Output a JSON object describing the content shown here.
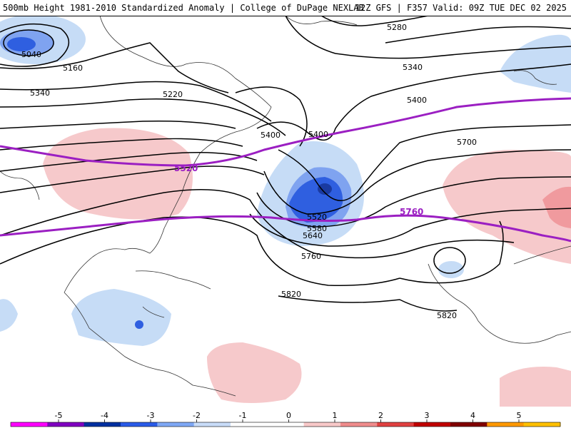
{
  "header": {
    "title_left": "500mb Height 1981-2010 Standardized Anomaly | College of DuPage NEXLAB",
    "title_right": "12Z GFS | F357 Valid: 09Z TUE DEC 02 2025"
  },
  "contour_labels": {
    "c5040": "5040",
    "c5160": "5160",
    "c5220": "5220",
    "c5280": "5280",
    "c5340a": "5340",
    "c5340b": "5340",
    "c5400a": "5400",
    "c5400b": "5400",
    "c5400c": "5400",
    "c5520": "5520",
    "c5580": "5580",
    "c5640": "5640",
    "c5700": "5700",
    "c5760": "5760",
    "c5820a": "5820",
    "c5820b": "5820"
  },
  "highlight_labels": {
    "h5520": "5520",
    "h5760": "5760"
  },
  "legend": {
    "ticks": [
      "-5",
      "-4",
      "-3",
      "-2",
      "-1",
      "0",
      "1",
      "2",
      "3",
      "4",
      "5"
    ],
    "colors": [
      "#ff00ff",
      "#8000c0",
      "#0030a0",
      "#2a5be8",
      "#7fa8f5",
      "#c8dcf8",
      "#ffffff",
      "#ffffff",
      "#f8c8c8",
      "#f08c8c",
      "#e04040",
      "#c00000",
      "#800000",
      "#ff9900",
      "#ffc000"
    ]
  },
  "colors": {
    "highlight_contour": "#9b1fc2",
    "neg_anom_1": "#c6dcf6",
    "neg_anom_2": "#7fa3f0",
    "neg_anom_3": "#2f5fe0",
    "pos_anom_1": "#f6c9cb",
    "pos_anom_2": "#f09a9e"
  }
}
